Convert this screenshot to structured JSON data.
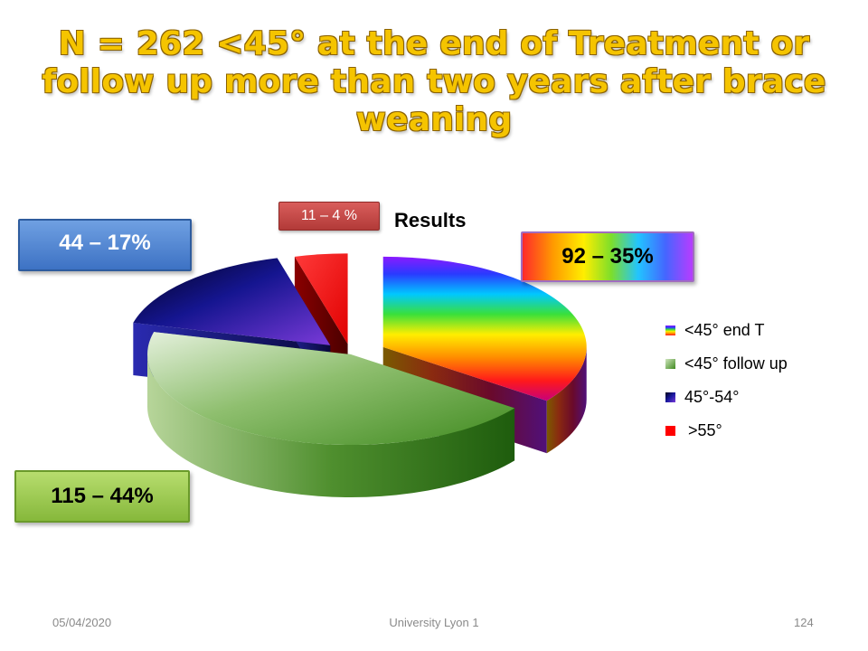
{
  "slide": {
    "title_lines": [
      "N = 262 <45° at the end of Treatment or",
      "follow up more than two years after brace",
      "weaning"
    ]
  },
  "callouts": {
    "end_t": "92 – 35%",
    "follow_up": "115 – 44%",
    "range_45_54": "44 – 17%",
    "over_55": "11 – 4 %"
  },
  "chart_data": {
    "type": "pie",
    "title": "Results",
    "categories": [
      "<45° end T",
      "<45° follow up",
      "45°-54°",
      ">55°"
    ],
    "values": [
      92,
      115,
      44,
      11
    ],
    "percentages": [
      35,
      44,
      17,
      4
    ],
    "exploded": true,
    "three_d": true,
    "legend_position": "right",
    "colors": [
      "rainbow-gradient",
      "#3f8a1f",
      "#1a1aa0",
      "#ff0000"
    ]
  },
  "colors": {
    "title_fill": "#f5c400",
    "title_outline": "#8a6100",
    "green_top": "#c9e4b1",
    "green_dark": "#1e5c0d",
    "blue_dark": "#0a0a5a",
    "red": "#ff0000"
  },
  "footer": {
    "date": "05/04/2020",
    "center": "University Lyon 1",
    "page": "124"
  }
}
